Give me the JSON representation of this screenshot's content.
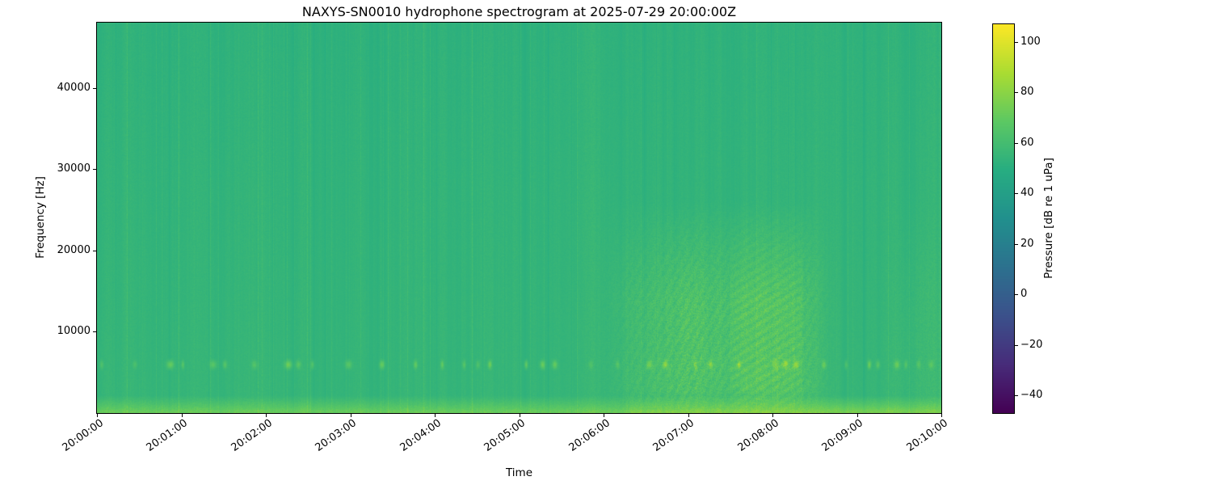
{
  "chart_data": {
    "type": "heatmap",
    "title": "NAXYS-SN0010 hydrophone spectrogram at 2025-07-29 20:00:00Z",
    "xlabel": "Time",
    "ylabel": "Frequency [Hz]",
    "colorbar_label": "Pressure [dB re 1 uPa]",
    "colormap": "viridis",
    "grid": false,
    "legend": "none",
    "x_ticks": [
      "20:00:00",
      "20:01:00",
      "20:02:00",
      "20:03:00",
      "20:04:00",
      "20:05:00",
      "20:06:00",
      "20:07:00",
      "20:08:00",
      "20:09:00",
      "20:10:00"
    ],
    "x_range_minutes": [
      0,
      10
    ],
    "y_ticks": [
      10000,
      20000,
      30000,
      40000
    ],
    "y_tick_labels": [
      "10000",
      "20000",
      "30000",
      "40000"
    ],
    "y_range_hz": [
      0,
      48000
    ],
    "colorbar_ticks": [
      100,
      80,
      60,
      40,
      20,
      0,
      -20,
      -40
    ],
    "colorbar_tick_labels": [
      "100",
      "80",
      "60",
      "40",
      "20",
      "0",
      "−20",
      "−40"
    ],
    "color_range_db": [
      -47,
      107
    ],
    "background_level_db": 55,
    "features": [
      {
        "name": "low-frequency-noise-band",
        "freq_hz": [
          0,
          2200
        ],
        "time_min": [
          0,
          10
        ],
        "approx_level_db": 73
      },
      {
        "name": "tonal-pulse-train",
        "freq_hz": [
          5500,
          6500
        ],
        "time_min": [
          0,
          10
        ],
        "period_s": 15,
        "approx_level_db": 73
      },
      {
        "name": "broadband-event",
        "freq_hz": [
          1000,
          25000
        ],
        "time_min": [
          5.9,
          8.7
        ],
        "approx_level_db": 76,
        "peak_time_min": [
          7.5,
          8.3
        ]
      },
      {
        "name": "vertical-transient-stripes",
        "freq_hz": [
          0,
          48000
        ],
        "time_min": [
          0,
          10
        ],
        "approx_level_db": 60
      }
    ],
    "summary_grid_db": {
      "time_bins_min": [
        0,
        1,
        2,
        3,
        4,
        5,
        6,
        7,
        8,
        9
      ],
      "freq_bins_hz": [
        1000,
        6000,
        12000,
        20000,
        30000,
        42000
      ],
      "values": [
        [
          70,
          70,
          70,
          70,
          70,
          70,
          71,
          74,
          74,
          71
        ],
        [
          62,
          61,
          62,
          61,
          62,
          62,
          66,
          71,
          71,
          63
        ],
        [
          56,
          56,
          56,
          56,
          56,
          56,
          60,
          67,
          66,
          58
        ],
        [
          55,
          55,
          55,
          55,
          55,
          55,
          57,
          61,
          60,
          56
        ],
        [
          54,
          54,
          54,
          54,
          54,
          54,
          55,
          56,
          56,
          55
        ],
        [
          53,
          53,
          53,
          53,
          53,
          53,
          53,
          54,
          54,
          53
        ]
      ]
    }
  }
}
